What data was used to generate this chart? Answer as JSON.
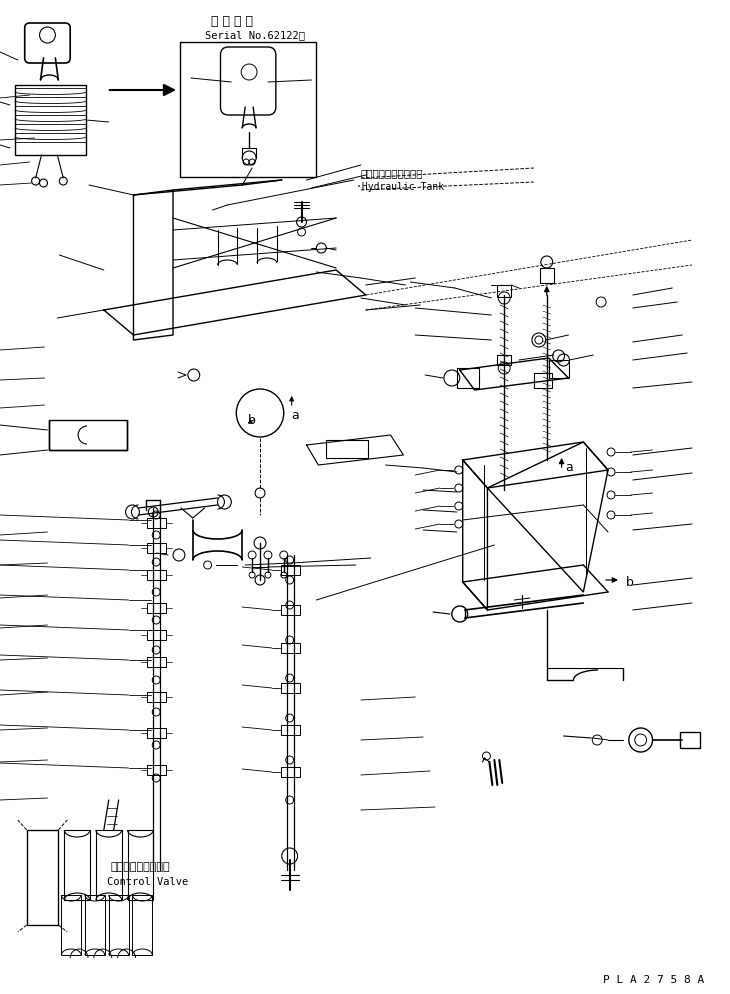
{
  "bg_color": "#ffffff",
  "line_color": "#000000",
  "title1": "適 用 号 機",
  "title2": "Serial No.62122～",
  "label_hyd_jp": "ハイドロリックタンク",
  "label_hyd_en": "·Hydraulic Tank",
  "label_cv_jp": "コントロールバルブ",
  "label_cv_en": "Control Valve",
  "watermark": "P L A 2 7 5 8 A",
  "fig_width": 7.3,
  "fig_height": 9.94,
  "dpi": 100
}
